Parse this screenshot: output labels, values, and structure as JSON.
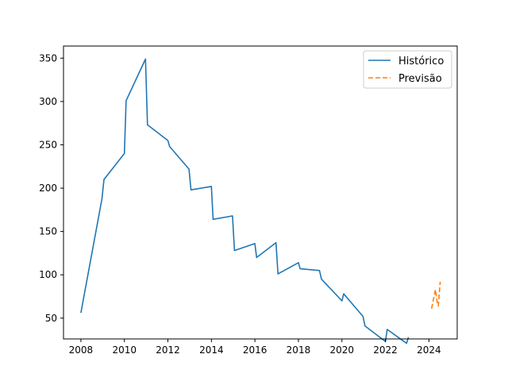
{
  "chart_data": {
    "type": "line",
    "xlim": [
      2007.2,
      2025.3
    ],
    "ylim": [
      26,
      364
    ],
    "x_ticks": [
      2008,
      2010,
      2012,
      2014,
      2016,
      2018,
      2020,
      2022,
      2024
    ],
    "y_ticks": [
      50,
      100,
      150,
      200,
      250,
      300,
      350
    ],
    "grid": false,
    "legend_placement": "top-right",
    "series": [
      {
        "name": "Histórico",
        "color": "#1f77b4",
        "style": "solid",
        "points": [
          [
            2008.0,
            56
          ],
          [
            2008.97,
            188
          ],
          [
            2009.06,
            210
          ],
          [
            2010.0,
            240
          ],
          [
            2010.08,
            301
          ],
          [
            2010.97,
            349
          ],
          [
            2011.06,
            273
          ],
          [
            2012.0,
            255
          ],
          [
            2012.08,
            248
          ],
          [
            2012.97,
            222
          ],
          [
            2013.06,
            198
          ],
          [
            2014.0,
            202
          ],
          [
            2014.08,
            164
          ],
          [
            2014.97,
            168
          ],
          [
            2015.06,
            128
          ],
          [
            2016.0,
            136
          ],
          [
            2016.08,
            120
          ],
          [
            2016.97,
            137
          ],
          [
            2017.06,
            101
          ],
          [
            2018.0,
            114
          ],
          [
            2018.08,
            107
          ],
          [
            2018.97,
            105
          ],
          [
            2019.06,
            95
          ],
          [
            2020.0,
            70
          ],
          [
            2020.08,
            78
          ],
          [
            2020.97,
            52
          ],
          [
            2021.06,
            41
          ],
          [
            2022.0,
            23
          ],
          [
            2022.08,
            37
          ],
          [
            2022.97,
            21
          ],
          [
            2023.06,
            28
          ]
        ]
      },
      {
        "name": "Previsão",
        "color": "#ff7f0e",
        "style": "dashed",
        "points": [
          [
            2024.12,
            61
          ],
          [
            2024.3,
            83
          ],
          [
            2024.37,
            70
          ],
          [
            2024.43,
            64
          ],
          [
            2024.52,
            92
          ]
        ]
      }
    ]
  }
}
